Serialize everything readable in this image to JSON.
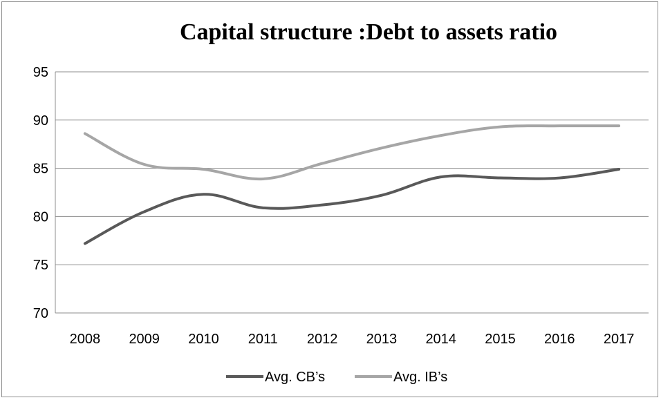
{
  "chart_data": {
    "type": "line",
    "title": "Capital structure :Debt to assets ratio",
    "xlabel": "",
    "ylabel": "",
    "x": [
      "2008",
      "2009",
      "2010",
      "2011",
      "2012",
      "2013",
      "2014",
      "2015",
      "2016",
      "2017"
    ],
    "ylim": [
      70,
      95
    ],
    "yticks": [
      70,
      75,
      80,
      85,
      90,
      95
    ],
    "grid": true,
    "legend": "bottom",
    "series": [
      {
        "name": "Avg. CB’s",
        "color": "#595959",
        "values": [
          77.2,
          80.5,
          82.3,
          80.9,
          81.2,
          82.2,
          84.1,
          84.0,
          84.0,
          84.9
        ]
      },
      {
        "name": "Avg. IB’s",
        "color": "#a6a6a6",
        "values": [
          88.6,
          85.4,
          84.9,
          83.9,
          85.5,
          87.1,
          88.4,
          89.3,
          89.4,
          89.4
        ]
      }
    ]
  }
}
